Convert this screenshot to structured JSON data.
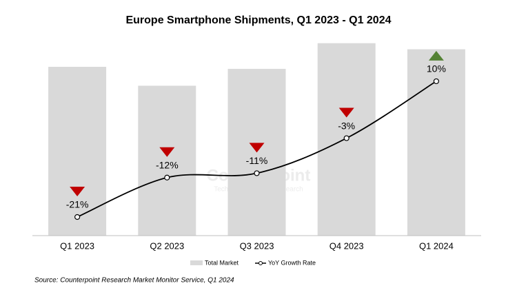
{
  "chart_data": {
    "type": "bar_line",
    "title": "Europe Smartphone Shipments, Q1 2023 - Q1 2024",
    "categories": [
      "Q1 2023",
      "Q2 2023",
      "Q3 2023",
      "Q4 2023",
      "Q1 2024"
    ],
    "series": [
      {
        "name": "Total Market",
        "color": "#d9d9d9",
        "values": [
          25.0,
          22.2,
          24.7,
          28.5,
          27.6
        ]
      },
      {
        "name": "YoY Growth Rate",
        "color": "#000000",
        "axis": "y2",
        "values": [
          -21,
          -12,
          -11,
          -3,
          10
        ],
        "value_labels": [
          "-21%",
          "-12%",
          "-11%",
          "-3%",
          "10%"
        ]
      }
    ],
    "ylim": [
      0,
      30
    ],
    "y2lim": [
      -25.25,
      21
    ],
    "up_color": "#548235",
    "down_color": "#c00000",
    "watermark": [
      "Counterpoint",
      "Technology Market Research"
    ],
    "source": "Source: Counterpoint Research Market Monitor Service, Q1 2024"
  }
}
